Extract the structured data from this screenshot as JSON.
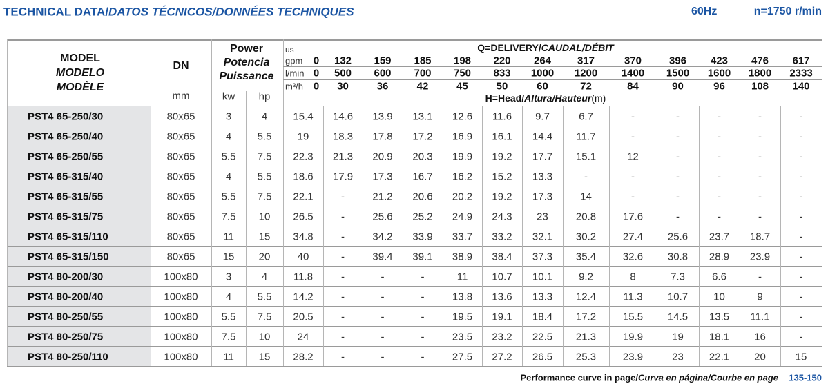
{
  "header": {
    "title": "TECHNICAL DATA/",
    "title_italic": "DATOS TÉCNICOS/DONNÉES TECHNIQUES",
    "frequency": "60Hz",
    "speed": "n=1750 r/min"
  },
  "table": {
    "model_header": [
      "MODEL",
      "MODELO",
      "MODÈLE"
    ],
    "dn_header": "DN",
    "dn_unit": "mm",
    "power_header": [
      "Power",
      "Potencia",
      "Puissance"
    ],
    "power_units": [
      "kw",
      "hp"
    ],
    "delivery_header": "Q=DELIVERY/",
    "delivery_header_italic": "CAUDAL/DÉBIT",
    "head_header": "H=Head/",
    "head_header_italic": "Altura/Hauteur",
    "head_unit": "(m)",
    "flow_prefix": "us",
    "flow_rows": [
      {
        "unit": "gpm",
        "values": [
          0,
          132,
          159,
          185,
          198,
          220,
          264,
          317,
          370,
          396,
          423,
          476,
          617
        ]
      },
      {
        "unit": "l/min",
        "values": [
          0,
          500,
          600,
          700,
          750,
          833,
          1000,
          1200,
          1400,
          1500,
          1600,
          1800,
          2333
        ]
      },
      {
        "unit": "m³/h",
        "values": [
          0,
          30,
          36,
          42,
          45,
          50,
          60,
          72,
          84,
          90,
          96,
          108,
          140
        ]
      }
    ],
    "rows": [
      {
        "model": "PST4 65-250/30",
        "dn": "80x65",
        "kw": 3,
        "hp": 4,
        "head": [
          15.4,
          14.6,
          13.9,
          13.1,
          12.6,
          11.6,
          9.7,
          6.7,
          "-",
          "-",
          "-",
          "-",
          "-"
        ]
      },
      {
        "model": "PST4 65-250/40",
        "dn": "80x65",
        "kw": 4,
        "hp": 5.5,
        "head": [
          19,
          18.3,
          17.8,
          17.2,
          16.9,
          16.1,
          14.4,
          11.7,
          "-",
          "-",
          "-",
          "-",
          "-"
        ]
      },
      {
        "model": "PST4 65-250/55",
        "dn": "80x65",
        "kw": 5.5,
        "hp": 7.5,
        "head": [
          22.3,
          21.3,
          20.9,
          20.3,
          19.9,
          19.2,
          17.7,
          15.1,
          12,
          "-",
          "-",
          "-",
          "-"
        ]
      },
      {
        "model": "PST4 65-315/40",
        "dn": "80x65",
        "kw": 4,
        "hp": 5.5,
        "head": [
          18.6,
          17.9,
          17.3,
          16.7,
          16.2,
          15.2,
          13.3,
          "-",
          "-",
          "-",
          "-",
          "-",
          "-"
        ]
      },
      {
        "model": "PST4 65-315/55",
        "dn": "80x65",
        "kw": 5.5,
        "hp": 7.5,
        "head": [
          22.1,
          "-",
          21.2,
          20.6,
          20.2,
          19.2,
          17.3,
          14,
          "-",
          "-",
          "-",
          "-",
          "-"
        ]
      },
      {
        "model": "PST4 65-315/75",
        "dn": "80x65",
        "kw": 7.5,
        "hp": 10,
        "head": [
          26.5,
          "-",
          25.6,
          25.2,
          24.9,
          24.3,
          23,
          20.8,
          17.6,
          "-",
          "-",
          "-",
          "-"
        ]
      },
      {
        "model": "PST4 65-315/110",
        "dn": "80x65",
        "kw": 11,
        "hp": 15,
        "head": [
          34.8,
          "-",
          34.2,
          33.9,
          33.7,
          33.2,
          32.1,
          30.2,
          27.4,
          25.6,
          23.7,
          18.7,
          "-"
        ]
      },
      {
        "model": "PST4 65-315/150",
        "dn": "80x65",
        "kw": 15,
        "hp": 20,
        "head": [
          40,
          "-",
          39.4,
          39.1,
          38.9,
          38.4,
          37.3,
          35.4,
          32.6,
          30.8,
          28.9,
          23.9,
          "-"
        ]
      },
      {
        "model": "PST4 80-200/30",
        "dn": "100x80",
        "kw": 3,
        "hp": 4,
        "head": [
          11.8,
          "-",
          "-",
          "-",
          11,
          10.7,
          10.1,
          9.2,
          8,
          7.3,
          6.6,
          "-",
          "-"
        ]
      },
      {
        "model": "PST4 80-200/40",
        "dn": "100x80",
        "kw": 4,
        "hp": 5.5,
        "head": [
          14.2,
          "-",
          "-",
          "-",
          13.8,
          13.6,
          13.3,
          12.4,
          11.3,
          10.7,
          10,
          9,
          "-"
        ]
      },
      {
        "model": "PST4 80-250/55",
        "dn": "100x80",
        "kw": 5.5,
        "hp": 7.5,
        "head": [
          20.5,
          "-",
          "-",
          "-",
          19.5,
          19.1,
          18.4,
          17.2,
          15.5,
          14.5,
          13.5,
          11.1,
          "-"
        ]
      },
      {
        "model": "PST4 80-250/75",
        "dn": "100x80",
        "kw": 7.5,
        "hp": 10,
        "head": [
          24,
          "-",
          "-",
          "-",
          23.5,
          23.2,
          22.5,
          21.3,
          19.9,
          19,
          18.1,
          16,
          "-"
        ]
      },
      {
        "model": "PST4 80-250/110",
        "dn": "100x80",
        "kw": 11,
        "hp": 15,
        "head": [
          28.2,
          "-",
          "-",
          "-",
          27.5,
          27.2,
          26.5,
          25.3,
          23.9,
          23,
          22.1,
          20,
          15
        ]
      }
    ]
  },
  "footer": {
    "text": "Performance curve in page/",
    "text_italic": "Curva en página/Courbe en page",
    "pages": "135-150"
  }
}
